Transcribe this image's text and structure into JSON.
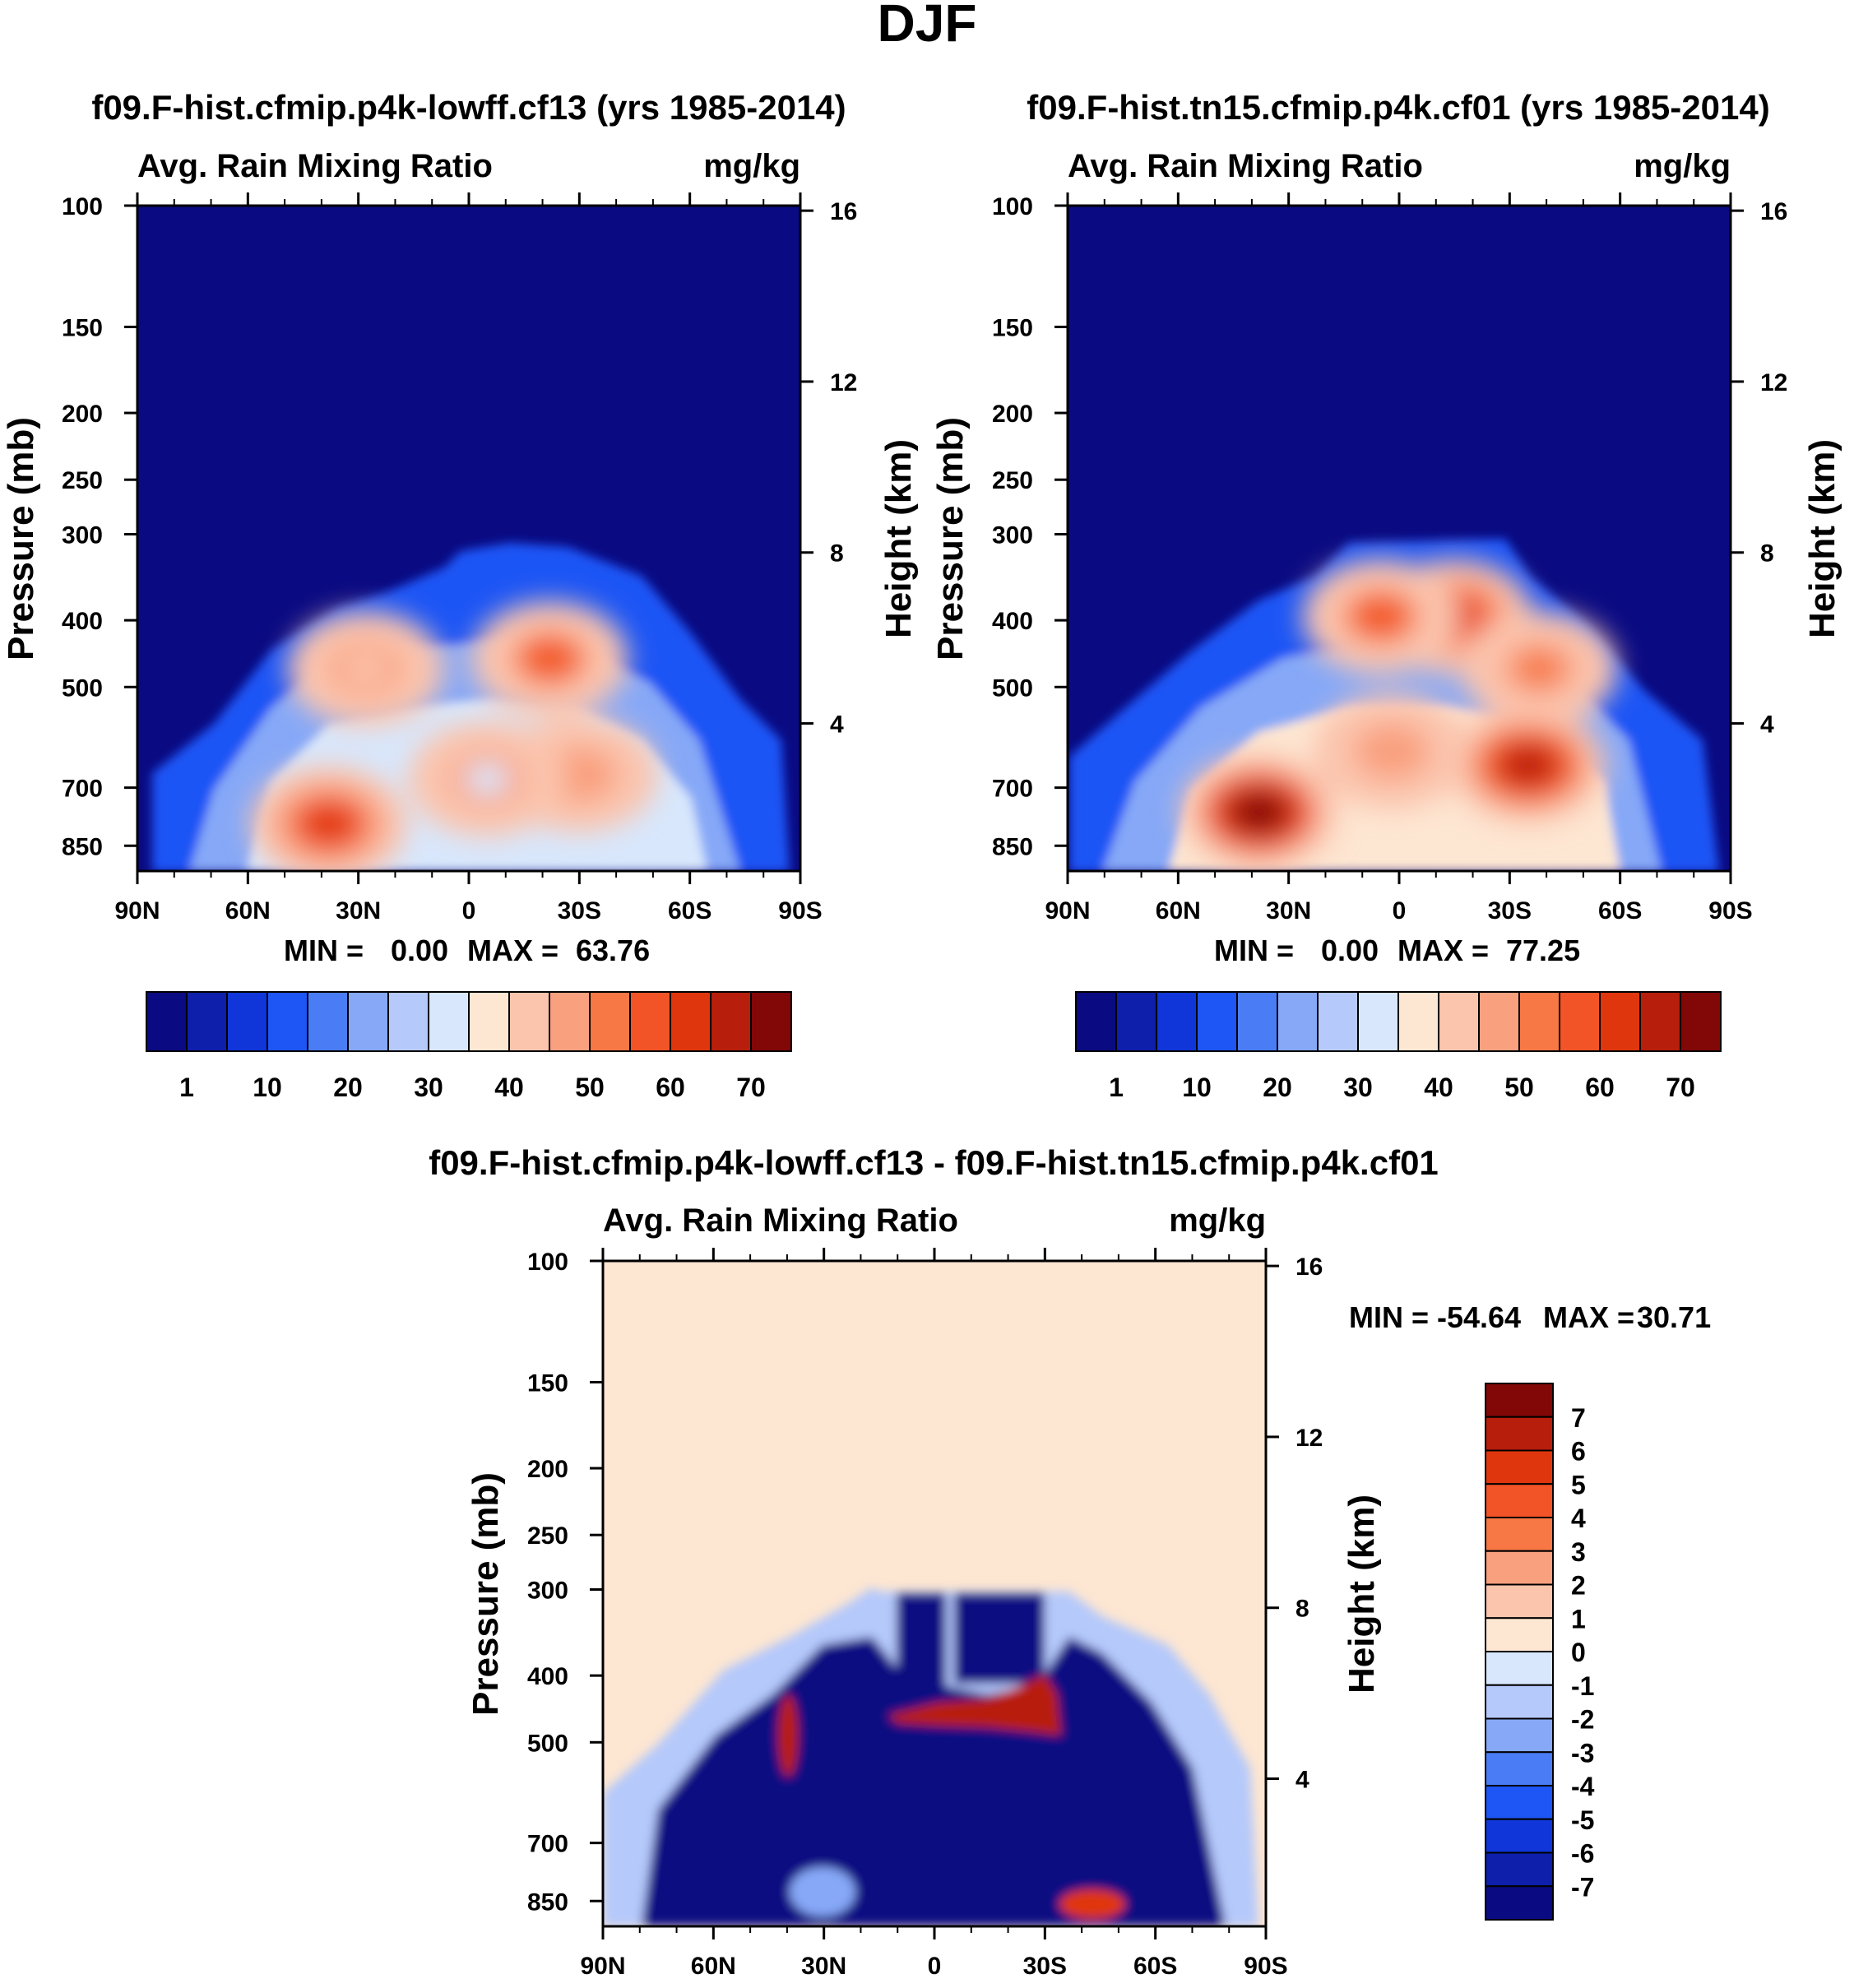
{
  "figure": {
    "title": "DJF"
  },
  "colors": {
    "dark_blue": "#0a0a82",
    "peach": "#fde6d2",
    "palette": [
      "#0a0a82",
      "#0e1fab",
      "#1036d9",
      "#1e55f5",
      "#4a7df5",
      "#86a8f7",
      "#b5c9fb",
      "#d8e7fc",
      "#fde6d2",
      "#fbc4ad",
      "#f9a07f",
      "#f77745",
      "#f25428",
      "#e0360e",
      "#b81e0c",
      "#820707"
    ]
  },
  "chart_data": [
    {
      "id": "top-left",
      "type": "heatmap",
      "title": "f09.F-hist.cfmip.p4k-lowff.cf13 (yrs 1985-2014)",
      "variable": "Avg. Rain Mixing Ratio",
      "units": "mg/kg",
      "ylabel": "Pressure (mb)",
      "y2label": "Height (km)",
      "x_ticks": [
        "90N",
        "60N",
        "30N",
        "0",
        "30S",
        "60S",
        "90S"
      ],
      "x_range": [
        90,
        -90
      ],
      "y_ticks": [
        100,
        150,
        200,
        250,
        300,
        400,
        500,
        700,
        850
      ],
      "y_range": [
        100,
        925
      ],
      "y_scale": "log",
      "y2_ticks": [
        16,
        12,
        8,
        4
      ],
      "min_label": "MIN =",
      "min": "0.00",
      "max_label": "MAX =",
      "max": "63.76",
      "colorbar": {
        "orientation": "horizontal",
        "labels": [
          "1",
          "10",
          "20",
          "30",
          "40",
          "50",
          "60",
          "70"
        ]
      },
      "blobs": [
        {
          "lat": 38,
          "p": 790,
          "value": 63
        },
        {
          "lat": -22,
          "p": 455,
          "value": 55
        },
        {
          "lat": -30,
          "p": 670,
          "value": 48
        },
        {
          "lat": -5,
          "p": 680,
          "value": 32
        },
        {
          "lat": 28,
          "p": 470,
          "value": 40
        }
      ]
    },
    {
      "id": "top-right",
      "type": "heatmap",
      "title": "f09.F-hist.tn15.cfmip.p4k.cf01 (yrs 1985-2014)",
      "variable": "Avg. Rain Mixing Ratio",
      "units": "mg/kg",
      "ylabel": "Pressure (mb)",
      "y2label": "Height (km)",
      "x_ticks": [
        "90N",
        "60N",
        "30N",
        "0",
        "30S",
        "60S",
        "90S"
      ],
      "x_range": [
        90,
        -90
      ],
      "y_ticks": [
        100,
        150,
        200,
        250,
        300,
        400,
        500,
        700,
        850
      ],
      "y_range": [
        100,
        925
      ],
      "y_scale": "log",
      "y2_ticks": [
        16,
        12,
        8,
        4
      ],
      "min_label": "MIN =",
      "min": "0.00",
      "max_label": "MAX =",
      "max": "77.25",
      "colorbar": {
        "orientation": "horizontal",
        "labels": [
          "1",
          "10",
          "20",
          "30",
          "40",
          "50",
          "60",
          "70"
        ]
      },
      "blobs": [
        {
          "lat": 38,
          "p": 760,
          "value": 77
        },
        {
          "lat": -35,
          "p": 650,
          "value": 65
        },
        {
          "lat": -15,
          "p": 395,
          "value": 62
        },
        {
          "lat": 5,
          "p": 395,
          "value": 55
        },
        {
          "lat": 2,
          "p": 620,
          "value": 45
        },
        {
          "lat": -38,
          "p": 470,
          "value": 50
        }
      ]
    },
    {
      "id": "bottom",
      "type": "heatmap",
      "title": "f09.F-hist.cfmip.p4k-lowff.cf13 - f09.F-hist.tn15.cfmip.p4k.cf01",
      "variable": "Avg. Rain Mixing Ratio",
      "units": "mg/kg",
      "ylabel": "Pressure (mb)",
      "y2label": "Height (km)",
      "x_ticks": [
        "90N",
        "60N",
        "30N",
        "0",
        "30S",
        "60S",
        "90S"
      ],
      "x_range": [
        90,
        -90
      ],
      "y_ticks": [
        100,
        150,
        200,
        250,
        300,
        400,
        500,
        700,
        850
      ],
      "y_range": [
        100,
        925
      ],
      "y_scale": "log",
      "y2_ticks": [
        16,
        12,
        8,
        4
      ],
      "min_label": "MIN =",
      "min": "-54.64",
      "max_label": "MAX =",
      "max": "30.71",
      "colorbar": {
        "orientation": "vertical",
        "labels": [
          "7",
          "6",
          "5",
          "4",
          "3",
          "2",
          "1",
          "0",
          "-1",
          "-2",
          "-3",
          "-4",
          "-5",
          "-6",
          "-7"
        ]
      }
    }
  ]
}
